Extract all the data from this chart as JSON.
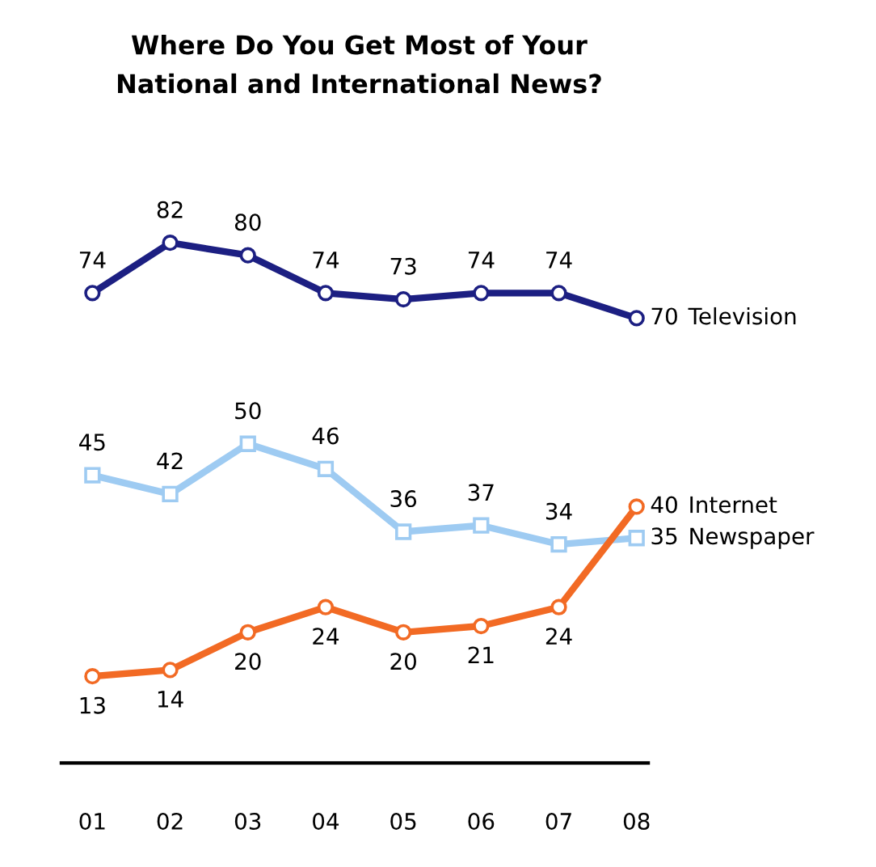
{
  "chart_data": {
    "type": "line",
    "title": "Where Do You Get Most of Your\nNational and International News?",
    "categories": [
      "01",
      "02",
      "03",
      "04",
      "05",
      "06",
      "07",
      "08"
    ],
    "series": [
      {
        "name": "Television",
        "color": "#1c1f82",
        "marker": "circle",
        "values": [
          74,
          82,
          80,
          74,
          73,
          74,
          74,
          70
        ]
      },
      {
        "name": "Newspaper",
        "color": "#9ecbf2",
        "marker": "square",
        "values": [
          45,
          42,
          50,
          46,
          36,
          37,
          34,
          35
        ]
      },
      {
        "name": "Internet",
        "color": "#f26a24",
        "marker": "circle",
        "values": [
          13,
          14,
          20,
          24,
          20,
          21,
          24,
          40
        ]
      }
    ],
    "data_labels": true,
    "grid": false,
    "legend": false,
    "line_style": "solid"
  }
}
